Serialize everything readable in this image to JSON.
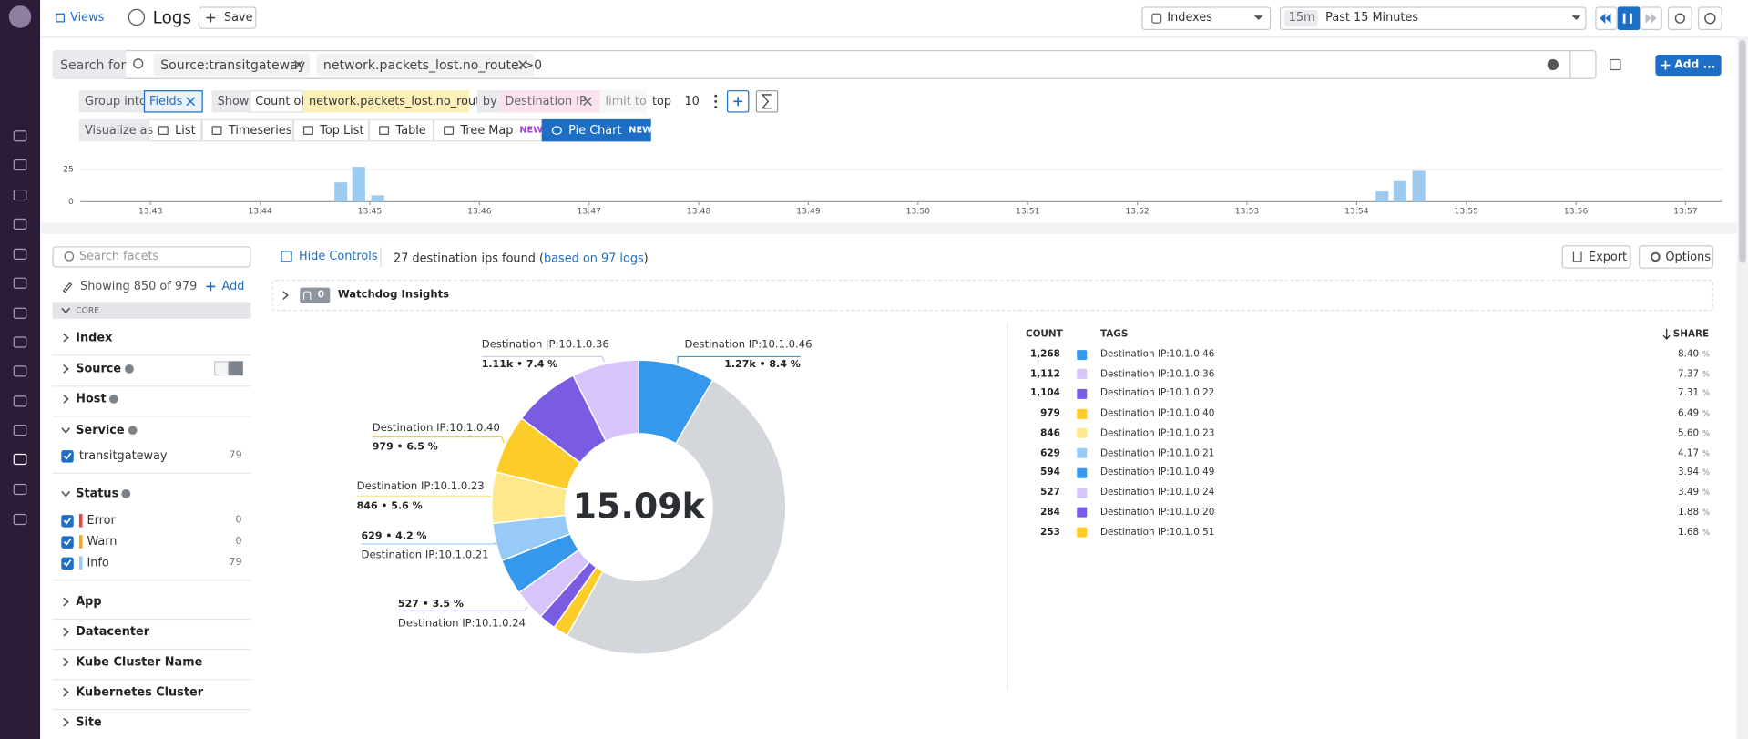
{
  "nav": {
    "views": "Views",
    "title": "Logs",
    "save": "Save",
    "indexes": "Indexes",
    "time_badge": "15m",
    "time_range": "Past 15 Minutes"
  },
  "search": {
    "label": "Search for",
    "tags": [
      "Source:transitgateway",
      "network.packets_lost.no_route:>0"
    ],
    "add": "Add ..."
  },
  "query": {
    "group_into": "Group into",
    "group_value": "Fields",
    "show": "Show",
    "count_of": "Count of",
    "measure": "network.packets_lost.no_route",
    "by": "by",
    "by_value": "Destination IP",
    "limit_to": "limit to",
    "top": "top",
    "limit": "10"
  },
  "visualize": {
    "label": "Visualize as",
    "options": [
      {
        "label": "List"
      },
      {
        "label": "Timeseries"
      },
      {
        "label": "Top List"
      },
      {
        "label": "Table"
      },
      {
        "label": "Tree Map",
        "badge": "NEW"
      },
      {
        "label": "Pie Chart",
        "badge": "NEW"
      }
    ]
  },
  "chart_data": [
    {
      "type": "bar",
      "values": [
        15,
        27,
        5,
        8,
        16,
        24
      ],
      "color": "#9ccaf0",
      "ylim": [
        0,
        29
      ],
      "yticks": [
        0,
        25
      ],
      "xticks": [
        "13:43",
        "13:44",
        "13:45",
        "13:46",
        "13:47",
        "13:48",
        "13:49",
        "13:50",
        "13:51",
        "13:52",
        "13:53",
        "13:54",
        "13:55",
        "13:56",
        "13:57"
      ]
    },
    {
      "type": "pie",
      "center_label": "15.09k",
      "categories": [
        "Destination IP:10.1.0.46",
        "Destination IP:10.1.0.36",
        "Destination IP:10.1.0.22",
        "Destination IP:10.1.0.40",
        "Destination IP:10.1.0.23",
        "Destination IP:10.1.0.21",
        "Destination IP:10.1.0.49",
        "Destination IP:10.1.0.24",
        "Destination IP:10.1.0.20",
        "Destination IP:10.1.0.51",
        null
      ],
      "values": [
        1268,
        1112,
        1104,
        979,
        846,
        629,
        594,
        527,
        284,
        253,
        7499
      ],
      "value_labels": [
        "1.27k • 8.4 %",
        "1.11k • 7.4 %",
        null,
        "979 • 6.5 %",
        "846 • 5.6 %",
        "629 • 4.2 %",
        null,
        "527 • 3.5 %",
        null,
        null,
        null
      ],
      "colors": [
        "#3598ec",
        "#d7c4fa",
        "#7a5ce3",
        "#fccc2a",
        "#fde98c",
        "#97caf7",
        "#3598ec",
        "#d7c4fa",
        "#7a5ce3",
        "#fccc2a",
        "#d3d6db"
      ]
    }
  ],
  "facets": {
    "search_placeholder": "Search facets",
    "showing": "Showing 850 of 979",
    "add": "Add",
    "group": "CORE",
    "items": [
      {
        "name": "Index"
      },
      {
        "name": "Source",
        "verified": true
      },
      {
        "name": "Host",
        "verified": true
      },
      {
        "name": "Service",
        "verified": true,
        "values": [
          {
            "label": "transitgateway",
            "count": "79"
          }
        ]
      },
      {
        "name": "Status",
        "verified": true,
        "values": [
          {
            "label": "Error",
            "count": "0",
            "color": "#e5484d"
          },
          {
            "label": "Warn",
            "count": "0",
            "color": "#f5a623"
          },
          {
            "label": "Info",
            "count": "79",
            "color": "#9ccaf0"
          }
        ]
      },
      {
        "name": "App"
      },
      {
        "name": "Datacenter"
      },
      {
        "name": "Kube Cluster Name"
      },
      {
        "name": "Kubernetes Cluster"
      },
      {
        "name": "Site"
      }
    ]
  },
  "main": {
    "hide_controls": "Hide Controls",
    "found": "27 destination ips found (",
    "based_on": "based on 97 logs",
    "found_end": ")",
    "export": "Export",
    "options": "Options",
    "watchdog_count": "0",
    "watchdog": "Watchdog Insights"
  },
  "table": {
    "headers": {
      "count": "COUNT",
      "tags": "TAGS",
      "share": "SHARE"
    },
    "share_unit": "%",
    "rows": [
      {
        "count": "1,268",
        "share": "8.40"
      },
      {
        "count": "1,112",
        "share": "7.37"
      },
      {
        "count": "1,104",
        "share": "7.31"
      },
      {
        "count": "979",
        "share": "6.49"
      },
      {
        "count": "846",
        "share": "5.60"
      },
      {
        "count": "629",
        "share": "4.17"
      },
      {
        "count": "594",
        "share": "3.94"
      },
      {
        "count": "527",
        "share": "3.49"
      },
      {
        "count": "284",
        "share": "1.88"
      },
      {
        "count": "253",
        "share": "1.68"
      }
    ]
  }
}
